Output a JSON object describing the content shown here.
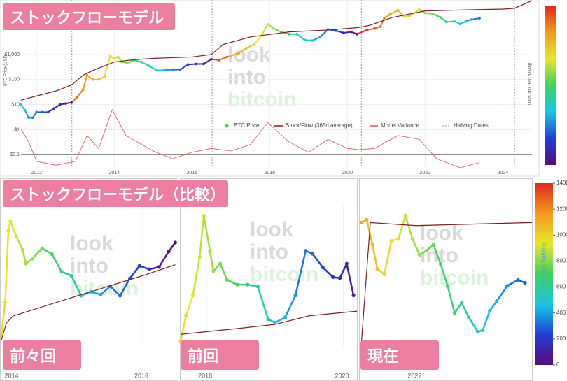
{
  "section_title": "ストックフローモデル（比較）",
  "watermark": [
    "look",
    "into",
    "bitcoin"
  ],
  "colorscale": [
    "#5b0a7a",
    "#1f3fd8",
    "#16c8e0",
    "#3fd25a",
    "#e8e62a",
    "#f39a1c",
    "#e3261c"
  ],
  "chart_data": [
    {
      "type": "scatter",
      "title": "ストックフローモデル",
      "y_label": "BTC Price (USD)",
      "log_y": true,
      "xlim": [
        2011.6,
        2024.75
      ],
      "ylim": [
        0.03,
        150000
      ],
      "xticks": [
        2012,
        2014,
        2016,
        2018,
        2020,
        2022,
        2024
      ],
      "yticks": [
        {
          "value": 0.1,
          "label": "$0.1"
        },
        {
          "value": 1,
          "label": "$1"
        },
        {
          "value": 10,
          "label": "$10"
        },
        {
          "value": 100,
          "label": "$100"
        },
        {
          "value": 1000,
          "label": "$1,000"
        }
      ],
      "y2lim": [
        -1,
        12
      ],
      "colorbar_label": "Days until next halving",
      "halving_dates": {
        "name": "Halving Dates",
        "color": "#999999",
        "x": [
          2012.91,
          2016.52,
          2020.36,
          2024.3
        ]
      },
      "series": [
        {
          "name": "BTC Price",
          "mode": "markers",
          "color": "#3fd25a",
          "x": [
            2011.6,
            2011.7,
            2011.8,
            2011.9,
            2012.0,
            2012.15,
            2012.3,
            2012.45,
            2012.6,
            2012.75,
            2012.9,
            2013.05,
            2013.2,
            2013.3,
            2013.45,
            2013.6,
            2013.75,
            2013.9,
            2013.98,
            2014.1,
            2014.2,
            2014.35,
            2014.5,
            2014.7,
            2014.9,
            2015.1,
            2015.3,
            2015.5,
            2015.7,
            2015.9,
            2016.1,
            2016.3,
            2016.5,
            2016.7,
            2016.9,
            2017.2,
            2017.4,
            2017.6,
            2017.8,
            2017.95,
            2018.1,
            2018.3,
            2018.5,
            2018.7,
            2018.9,
            2019.1,
            2019.3,
            2019.5,
            2019.7,
            2019.9,
            2020.1,
            2020.25,
            2020.5,
            2020.7,
            2020.85,
            2020.95,
            2021.1,
            2021.3,
            2021.45,
            2021.6,
            2021.85,
            2022.0,
            2022.2,
            2022.4,
            2022.55,
            2022.75,
            2022.9,
            2023.05,
            2023.2,
            2023.4
          ],
          "values": [
            10,
            6,
            3,
            3,
            5,
            5,
            5,
            7,
            10,
            11,
            12,
            20,
            40,
            150,
            100,
            100,
            130,
            900,
            700,
            800,
            500,
            450,
            600,
            500,
            350,
            230,
            240,
            250,
            250,
            400,
            420,
            420,
            650,
            600,
            800,
            1100,
            1800,
            2500,
            6000,
            16000,
            11000,
            8000,
            6500,
            6500,
            3800,
            3600,
            5000,
            10000,
            9000,
            7300,
            8000,
            6500,
            9500,
            11000,
            13000,
            28000,
            40000,
            58000,
            35000,
            34000,
            62000,
            45000,
            42000,
            30000,
            20000,
            21000,
            16500,
            21000,
            25000,
            28000
          ]
        },
        {
          "name": "Stock/Flow (365d average)",
          "mode": "lines",
          "color": "#7a1f1f",
          "x": [
            2011.6,
            2012.0,
            2012.5,
            2012.9,
            2013.2,
            2013.5,
            2014.0,
            2014.5,
            2015.0,
            2015.5,
            2016.0,
            2016.5,
            2016.8,
            2017.5,
            2018.5,
            2019.5,
            2020.3,
            2020.6,
            2021.15,
            2022.0,
            2023.0,
            2024.0,
            2024.3,
            2024.75
          ],
          "values": [
            15,
            22,
            35,
            60,
            150,
            250,
            500,
            620,
            700,
            750,
            800,
            1000,
            2500,
            5000,
            8000,
            9500,
            12000,
            15000,
            30000,
            55000,
            60000,
            65000,
            70000,
            140000
          ]
        },
        {
          "name": "Model Variance",
          "mode": "lines",
          "axis": "y2",
          "color": "#d9534f",
          "x": [
            2011.6,
            2011.8,
            2012.0,
            2012.5,
            2013.0,
            2013.3,
            2013.6,
            2013.95,
            2014.3,
            2015.0,
            2015.5,
            2016.0,
            2016.5,
            2017.0,
            2017.5,
            2017.95,
            2018.5,
            2019.0,
            2019.5,
            2020.0,
            2020.3,
            2020.7,
            2021.3,
            2021.85,
            2022.3,
            2022.9,
            2023.4
          ],
          "values": [
            2,
            1,
            -0.5,
            -0.8,
            -0.5,
            1.5,
            0.5,
            3.5,
            1.5,
            0.3,
            -0.3,
            0.2,
            0.5,
            0.3,
            0.8,
            2.5,
            1,
            0.2,
            1.2,
            0.5,
            0.4,
            0.5,
            1.5,
            1.2,
            -0.3,
            -1,
            -0.6
          ]
        }
      ]
    },
    {
      "type": "scatter",
      "title": "前々回",
      "log_y": true,
      "xlim": [
        2013.8,
        2016.55
      ],
      "ylim": [
        80,
        1500
      ],
      "xticks": [
        2014,
        2016
      ],
      "series": [
        {
          "name": "BTC Price",
          "mode": "markers",
          "color": "#3fd25a",
          "x": [
            2013.82,
            2013.88,
            2013.93,
            2013.96,
            2014.05,
            2014.15,
            2014.2,
            2014.3,
            2014.45,
            2014.6,
            2014.75,
            2014.9,
            2015.05,
            2015.2,
            2015.35,
            2015.5,
            2015.65,
            2015.8,
            2015.95,
            2016.1,
            2016.25,
            2016.4,
            2016.5
          ],
          "values": [
            100,
            200,
            900,
            1100,
            800,
            600,
            450,
            500,
            620,
            550,
            380,
            350,
            230,
            250,
            235,
            280,
            230,
            330,
            430,
            400,
            420,
            580,
            700
          ]
        },
        {
          "name": "Stock/Flow (365d average)",
          "mode": "lines",
          "color": "#7a1f1f",
          "x": [
            2013.82,
            2013.9,
            2014.0,
            2015.0,
            2016.0,
            2016.5
          ],
          "values": [
            90,
            130,
            150,
            230,
            350,
            440
          ]
        }
      ]
    },
    {
      "type": "scatter",
      "title": "前回",
      "log_y": true,
      "xlim": [
        2017.62,
        2020.2
      ],
      "ylim": [
        2500,
        22000
      ],
      "xticks": [
        2018,
        2020
      ],
      "series": [
        {
          "name": "BTC Price",
          "mode": "markers",
          "color": "#3fd25a",
          "x": [
            2017.62,
            2017.7,
            2017.8,
            2017.9,
            2017.96,
            2018.05,
            2018.1,
            2018.2,
            2018.3,
            2018.45,
            2018.6,
            2018.75,
            2018.9,
            2019.0,
            2019.15,
            2019.3,
            2019.45,
            2019.55,
            2019.7,
            2019.85,
            2019.95,
            2020.05,
            2020.15
          ],
          "values": [
            2700,
            4000,
            5500,
            10000,
            19000,
            11000,
            8000,
            9000,
            7000,
            6500,
            6500,
            6300,
            3800,
            3600,
            3900,
            5500,
            11000,
            10500,
            8500,
            7300,
            7200,
            9000,
            5500
          ]
        },
        {
          "name": "Stock/Flow (365d average)",
          "mode": "lines",
          "color": "#7a1f1f",
          "x": [
            2017.62,
            2018.5,
            2019.0,
            2019.5,
            2020.2
          ],
          "values": [
            3000,
            3300,
            3500,
            4000,
            4300
          ]
        }
      ]
    },
    {
      "type": "scatter",
      "title": "現在",
      "log_y": true,
      "xlim": [
        2021.2,
        2023.65
      ],
      "ylim": [
        14000,
        70000
      ],
      "xticks": [
        2022
      ],
      "colorbar": {
        "label": "Days until next halving",
        "lim": [
          0,
          1400
        ],
        "ticks": [
          0,
          200,
          400,
          600,
          800,
          1000,
          1200,
          1400
        ]
      },
      "series": [
        {
          "name": "BTC Price",
          "mode": "markers",
          "color": "#3fd25a",
          "x": [
            2021.22,
            2021.3,
            2021.38,
            2021.45,
            2021.55,
            2021.65,
            2021.75,
            2021.85,
            2021.95,
            2022.05,
            2022.15,
            2022.25,
            2022.35,
            2022.45,
            2022.55,
            2022.65,
            2022.75,
            2022.88,
            2022.95,
            2023.05,
            2023.15,
            2023.3,
            2023.45,
            2023.55
          ],
          "values": [
            58000,
            60000,
            45000,
            34000,
            32000,
            47000,
            48000,
            63000,
            48000,
            40000,
            42000,
            45000,
            36000,
            28000,
            20500,
            23000,
            19500,
            16500,
            16800,
            21000,
            23500,
            28000,
            30000,
            29000
          ]
        },
        {
          "name": "Stock/Flow (365d average)",
          "mode": "lines",
          "color": "#7a1f1f",
          "x": [
            2021.22,
            2021.35,
            2022.0,
            2023.65
          ],
          "values": [
            14000,
            58000,
            56000,
            58000
          ]
        }
      ]
    }
  ]
}
